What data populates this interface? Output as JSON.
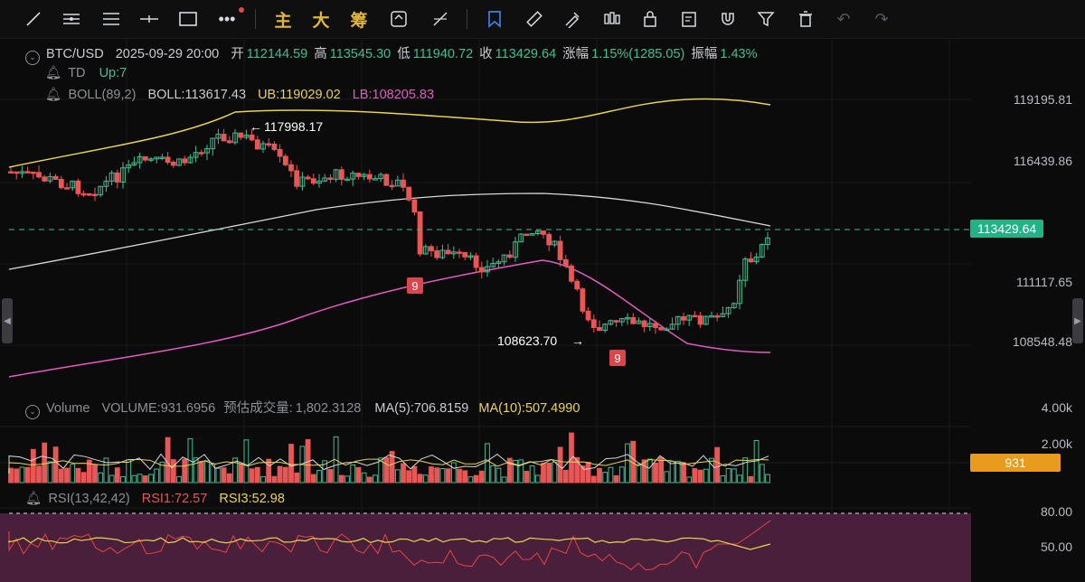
{
  "toolbar": {
    "tools": [
      "trendline-tool",
      "hlines-tool",
      "channel-tool",
      "horizontal-line-tool",
      "rectangle-tool",
      "more-tool"
    ],
    "cn_buttons": [
      "主",
      "大",
      "筹"
    ],
    "right_tools": [
      "indicator-tool",
      "flag-tool",
      "ruler-tool",
      "brush-tool",
      "candle-style-tool",
      "lock-tool",
      "note-tool",
      "magnet-tool",
      "filter-tool",
      "delete-tool",
      "undo-tool",
      "redo-tool"
    ]
  },
  "header": {
    "symbol": "BTC/USD",
    "datetime": "2025-09-29 20:00",
    "open_label": "开",
    "open": "112144.59",
    "high_label": "高",
    "high": "113545.30",
    "low_label": "低",
    "low": "111940.72",
    "close_label": "收",
    "close": "113429.64",
    "change_label": "涨幅",
    "change": "1.15%(1285.05)",
    "amp_label": "振幅",
    "amp": "1.43%"
  },
  "td": {
    "name": "TD",
    "value": "Up:7"
  },
  "boll": {
    "name": "BOLL(89,2)",
    "boll": "BOLL:113617.43",
    "ub": "UB:119029.02",
    "lb": "LB:108205.83"
  },
  "price_axis": [
    "119195.81",
    "116439.86",
    "111117.65",
    "108548.48"
  ],
  "last_price": "113429.64",
  "annotations": {
    "high": "117998.17",
    "low": "108623.70",
    "td_mark": "9"
  },
  "volume": {
    "name": "Volume",
    "value": "VOLUME:931.6956",
    "est_label": "预估成交量:",
    "est": "1,802.3128",
    "ma5": "MA(5):706.8159",
    "ma10": "MA(10):507.4990",
    "axis": [
      "4.00k",
      "2.00k"
    ],
    "last": "931"
  },
  "rsi": {
    "name": "RSI(13,42,42)",
    "rsi1": "RSI1:72.57",
    "rsi3": "RSI3:52.98",
    "axis": [
      "80.00",
      "50.00"
    ]
  },
  "colors": {
    "up": "#3cbf94",
    "down": "#e85656",
    "ub": "#e9d44d",
    "mid": "#d8d8d8",
    "lb": "#e35bc1",
    "accent": "#e89b1c",
    "rsi_zone": "#4a1f3b"
  }
}
